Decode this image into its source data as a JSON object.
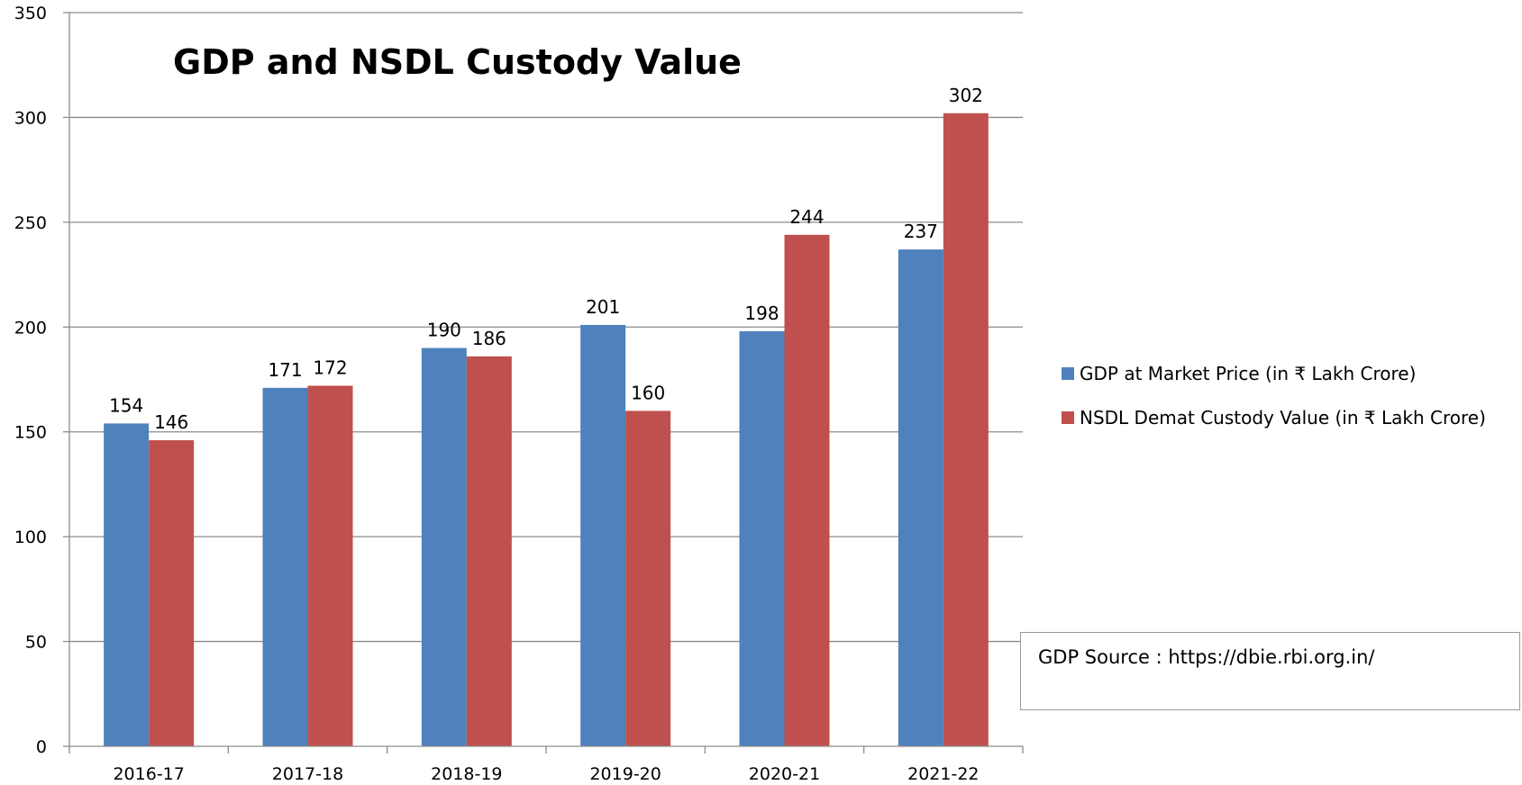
{
  "chart_data": {
    "type": "bar",
    "title": "GDP and NSDL Custody Value",
    "categories": [
      "2016-17",
      "2017-18",
      "2018-19",
      "2019-20",
      "2020-21",
      "2021-22"
    ],
    "series": [
      {
        "name": "GDP at Market Price (in ₹ Lakh Crore)",
        "color": "#4f81bd",
        "values": [
          154,
          171,
          190,
          201,
          198,
          237
        ]
      },
      {
        "name": "NSDL Demat Custody Value (in ₹ Lakh Crore)",
        "color": "#c0504d",
        "values": [
          146,
          172,
          186,
          160,
          244,
          302
        ]
      }
    ],
    "ylim": [
      0,
      350
    ],
    "yticks": [
      0,
      50,
      100,
      150,
      200,
      250,
      300,
      350
    ],
    "grid": true,
    "legend_position": "right",
    "data_labels": true
  },
  "source_note": "GDP Source : https://dbie.rbi.org.in/"
}
